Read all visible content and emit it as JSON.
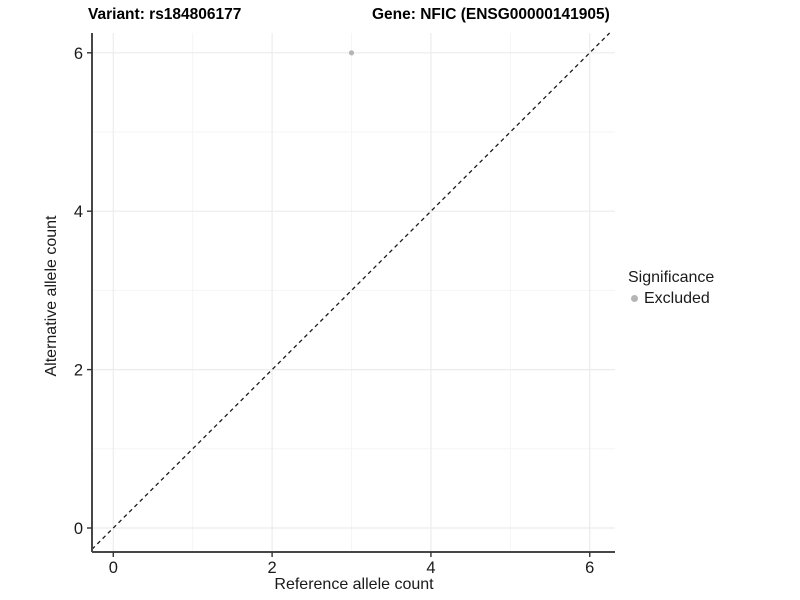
{
  "header": {
    "variant_title": "Variant: rs184806177",
    "gene_title": "Gene: NFIC (ENSG00000141905)"
  },
  "legend": {
    "title": "Significance",
    "items": [
      {
        "label": "Excluded",
        "color": "#b5b5b5"
      }
    ]
  },
  "chart_data": {
    "type": "scatter",
    "title_left": "Variant: rs184806177",
    "title_right": "Gene: NFIC (ENSG00000141905)",
    "xlabel": "Reference allele count",
    "ylabel": "Alternative allele count",
    "xlim": [
      -0.268,
      6.318
    ],
    "ylim": [
      -0.303,
      6.25
    ],
    "x_ticks": [
      0,
      2,
      4,
      6
    ],
    "y_ticks": [
      0,
      2,
      4,
      6
    ],
    "x_minor_ticks": [
      1,
      3,
      5
    ],
    "y_minor_ticks": [
      1,
      3,
      5
    ],
    "grid": true,
    "legend_position": "right",
    "legend_title": "Significance",
    "series": [
      {
        "name": "Excluded",
        "color": "#b5b5b5",
        "point_radius": 2.6,
        "points": [
          {
            "x": 3,
            "y": 6
          }
        ]
      }
    ],
    "reference_line": {
      "type": "identity_y_equals_x",
      "style": "dashed",
      "color": "#1a1a1a"
    }
  },
  "style": {
    "background": "#ffffff",
    "grid_major_color": "#ececec",
    "grid_minor_color": "#f5f5f5",
    "axis_line_color": "#474747",
    "tick_mark_color": "#333333",
    "tick_label_color": "#1a1a1a",
    "point_color": "#b5b5b5"
  }
}
